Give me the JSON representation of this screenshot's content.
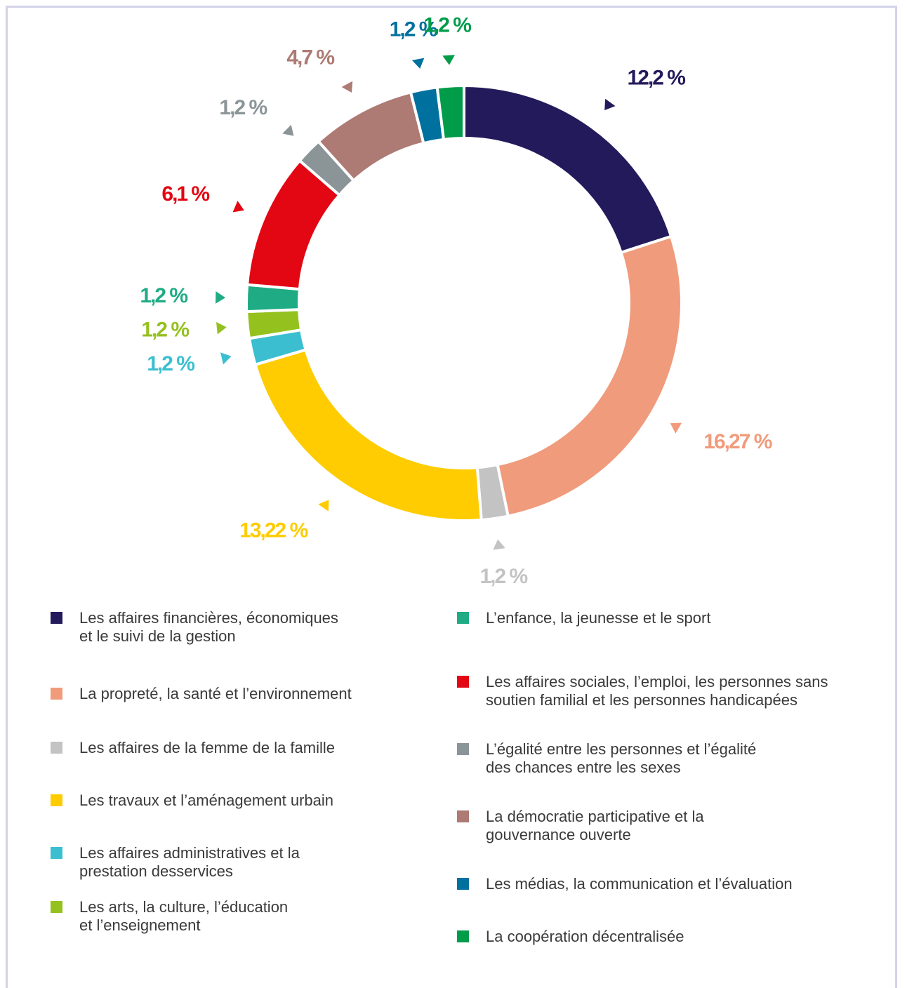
{
  "chart_data": {
    "type": "donut",
    "categories": [
      "Les affaires financières, économiques\net le suivi de la gestion",
      "La propreté, la santé et l’environnement",
      "Les affaires de la femme de la famille",
      "Les travaux et l’aménagement urbain",
      "Les affaires administratives et la\nprestation desservices",
      "Les arts, la culture, l’éducation\net l’enseignement",
      "L’enfance, la jeunesse et le sport",
      "Les affaires sociales, l’emploi, les personnes sans\nsoutien familial et les personnes handicapées",
      "L’égalité entre les personnes et l’égalité\ndes chances entre les sexes",
      "La démocratie participative et la\ngouvernance ouverte",
      "Les médias, la communication et l’évaluation",
      "La coopération décentralisée"
    ],
    "values": [
      12.2,
      16.27,
      1.2,
      13.22,
      1.2,
      1.2,
      1.2,
      6.1,
      1.2,
      4.7,
      1.2,
      1.2
    ],
    "value_labels": [
      "12,2 %",
      "16,27 %",
      "1,2 %",
      "13,22 %",
      "1,2 %",
      "1,2 %",
      "1,2 %",
      "6,1 %",
      "1,2 %",
      "4,7 %",
      "1,2 %",
      "1,2 %"
    ],
    "colors": [
      "#231a5c",
      "#f09b7c",
      "#c3c3c3",
      "#fecc00",
      "#3bbfd0",
      "#95c11f",
      "#1fab84",
      "#e30613",
      "#8b9598",
      "#ad7a74",
      "#00709f",
      "#009c49"
    ]
  }
}
